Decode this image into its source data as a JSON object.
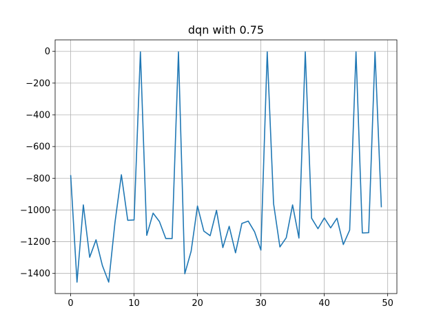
{
  "chart_data": {
    "type": "line",
    "title": "dqn with 0.75",
    "xlabel": "",
    "ylabel": "",
    "xlim": [
      -2.45,
      51.45
    ],
    "ylim": [
      -1527,
      72.5
    ],
    "grid": true,
    "xticks": [
      0,
      10,
      20,
      30,
      40,
      50
    ],
    "xtick_labels": [
      "0",
      "10",
      "20",
      "30",
      "40",
      "50"
    ],
    "yticks": [
      0,
      -200,
      -400,
      -600,
      -800,
      -1000,
      -1200,
      -1400
    ],
    "ytick_labels": [
      "0",
      "−200",
      "−400",
      "−600",
      "−800",
      "−1000",
      "−1200",
      "−1400"
    ],
    "series": [
      {
        "color": "#1f77b4",
        "x": [
          0,
          1,
          2,
          3,
          4,
          5,
          6,
          7,
          8,
          9,
          10,
          11,
          12,
          13,
          14,
          15,
          16,
          17,
          18,
          19,
          20,
          21,
          22,
          23,
          24,
          25,
          26,
          27,
          28,
          29,
          30,
          31,
          32,
          33,
          34,
          35,
          36,
          37,
          38,
          39,
          40,
          41,
          42,
          43,
          44,
          45,
          46,
          47,
          48,
          49
        ],
        "values": [
          -780,
          -1455,
          -968,
          -1298,
          -1188,
          -1350,
          -1455,
          -1075,
          -778,
          -1065,
          -1063,
          -3,
          -1160,
          -1020,
          -1073,
          -1180,
          -1180,
          -3,
          -1402,
          -1260,
          -975,
          -1133,
          -1162,
          -1002,
          -1237,
          -1103,
          -1270,
          -1085,
          -1070,
          -1137,
          -1253,
          -3,
          -960,
          -1233,
          -1175,
          -968,
          -1177,
          -3,
          -1052,
          -1118,
          -1050,
          -1113,
          -1052,
          -1218,
          -1127,
          -3,
          -1145,
          -1143,
          -3,
          -983
        ]
      }
    ]
  }
}
